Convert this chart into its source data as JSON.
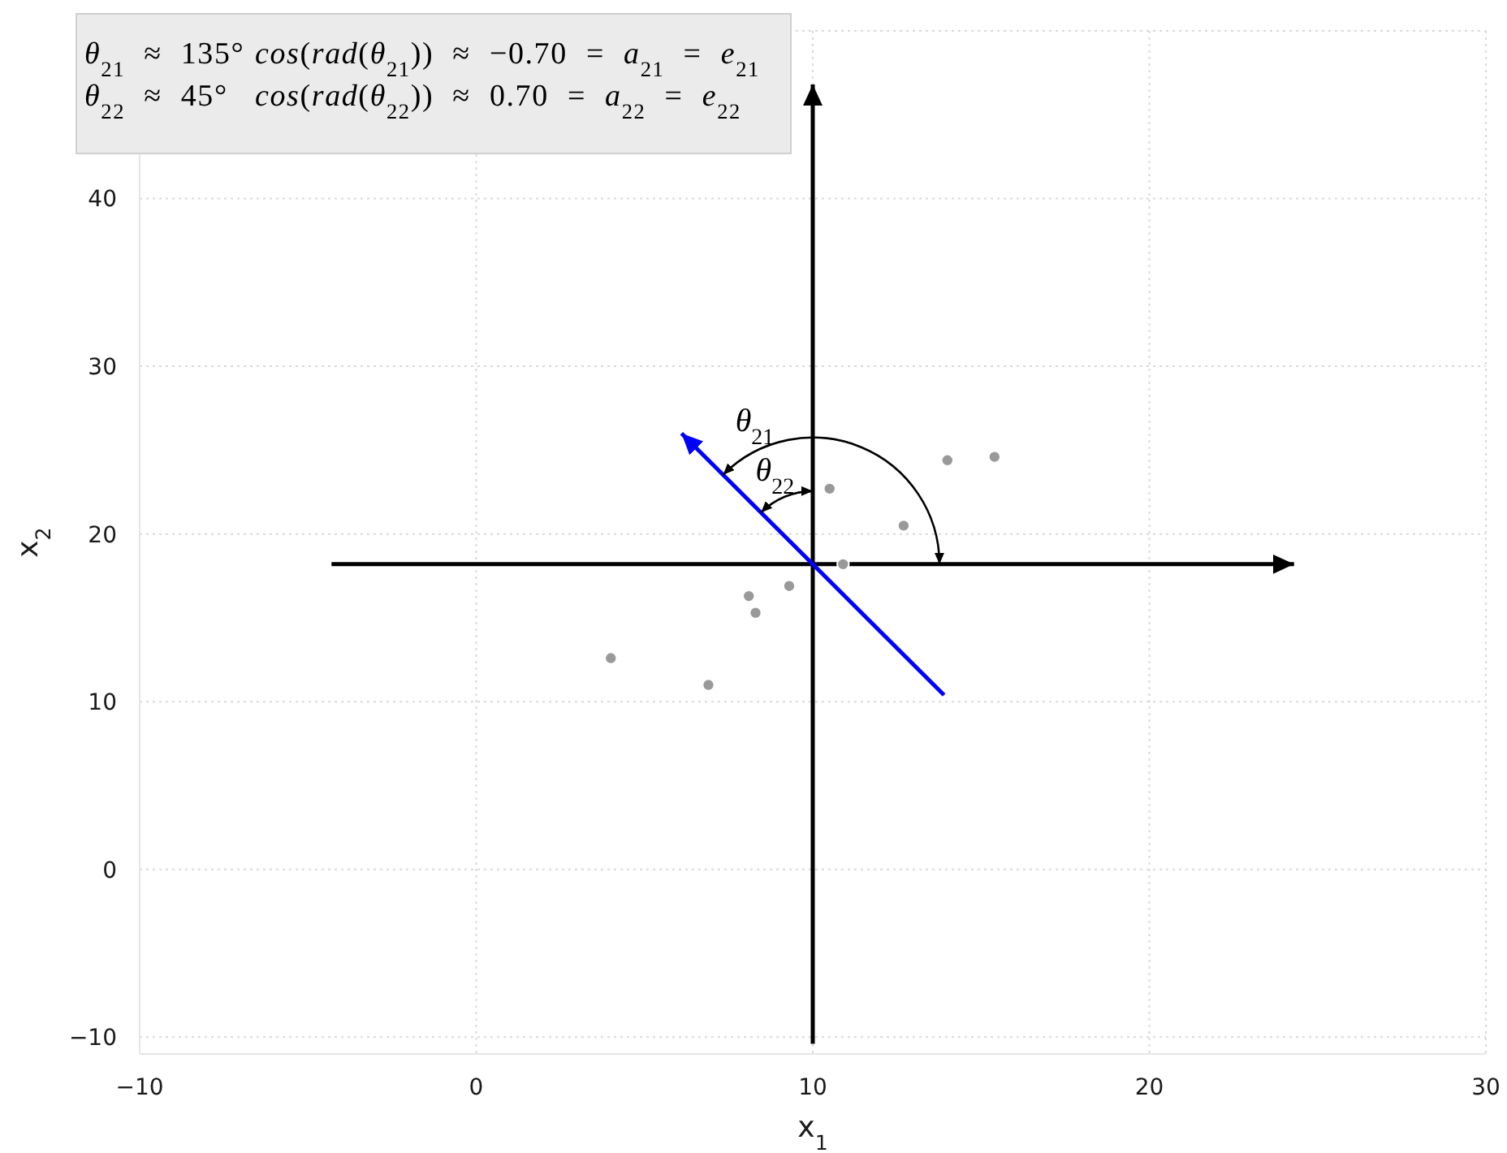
{
  "chart_data": {
    "type": "scatter",
    "xlabel": "x$_{1}$",
    "ylabel": "x$_{2}$",
    "annotations": [
      "θ$_{21}$ ≈ 135°",
      "cos(rad(θ$_{21}$)) ≈ −0.70 = a$_{21}$ = e$_{21}$",
      "θ$_{22}$ ≈ 45°",
      "cos(rad(θ$_{22}$)) ≈ 0.70 = a$_{22}$ = e$_{22}$",
      "θ$_{21}$",
      "θ$_{22}$"
    ],
    "series": [
      {
        "type": "line",
        "color": "#000000",
        "x": [
          -4.3,
          24.3
        ],
        "values": [
          18.2,
          18.2
        ]
      },
      {
        "type": "line",
        "color": "#000000",
        "x": [
          10,
          10
        ],
        "values": [
          -10.4,
          46.8
        ]
      },
      {
        "type": "line",
        "color": "#0000ff",
        "x": [
          13.9,
          6.1
        ],
        "values": [
          10.4,
          26.0
        ]
      },
      {
        "color": "#999999",
        "marker": "circle",
        "x": [
          14.0,
          15.4,
          10.5,
          12.7,
          10.9,
          9.3,
          8.1,
          8.3,
          4.0,
          6.9
        ],
        "values": [
          24.4,
          24.6,
          22.7,
          20.5,
          18.2,
          16.9,
          16.3,
          15.3,
          12.6,
          11.0
        ]
      }
    ],
    "xlim": [
      -10,
      30
    ],
    "xticks": [
      {
        "value": -10,
        "label": "−10"
      },
      0,
      10,
      20,
      30
    ],
    "ylim": [
      -11,
      50
    ],
    "yticks": [
      {
        "value": -10,
        "label": "−10"
      },
      0,
      10,
      20,
      30,
      40
    ],
    "grid": true
  }
}
